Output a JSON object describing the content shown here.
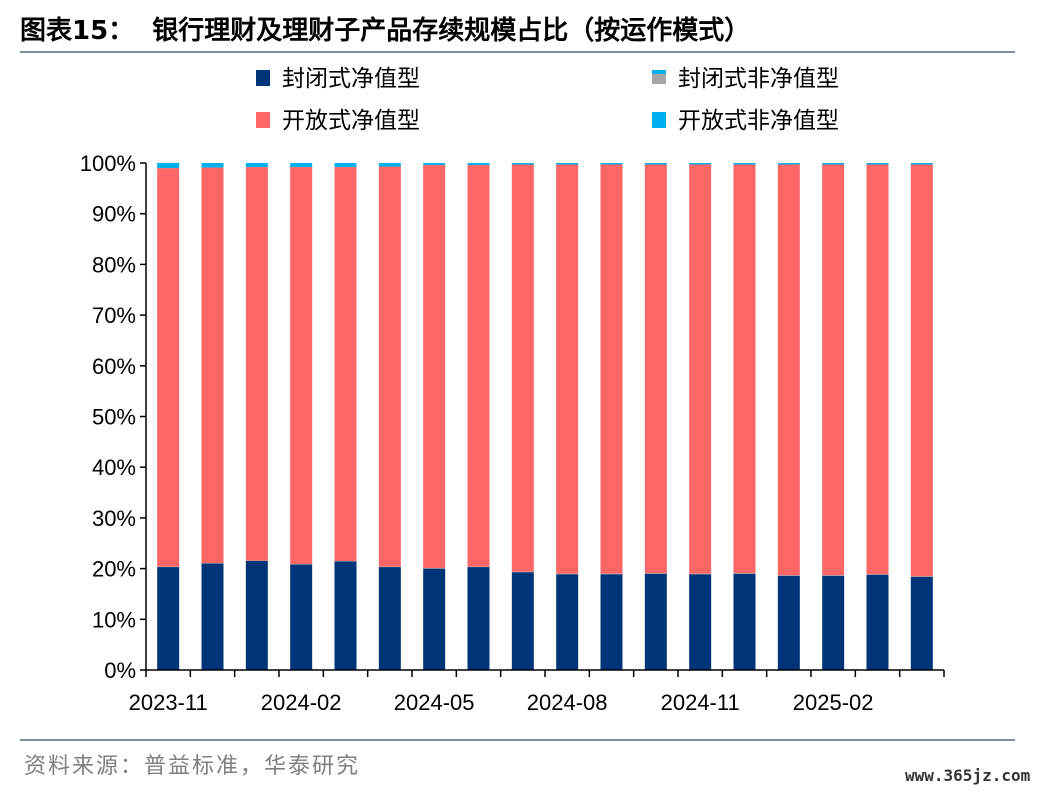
{
  "header": {
    "figure_label": "图表15：",
    "figure_title": "银行理财及理财子产品存续规模占比（按运作模式）"
  },
  "footer": {
    "source": "资料来源：普益标准，华泰研究",
    "watermark": "www.365jz.com"
  },
  "chart_data": {
    "type": "bar",
    "stacked": true,
    "categories": [
      "2023-11",
      "2023-12",
      "2024-01",
      "2024-02",
      "2024-03",
      "2024-04",
      "2024-05",
      "2024-06",
      "2024-07",
      "2024-08",
      "2024-09",
      "2024-10",
      "2024-11",
      "2024-12",
      "2025-01",
      "2025-02",
      "2025-03",
      "2025-04"
    ],
    "x_tick_labels": [
      "2023-11",
      "2024-02",
      "2024-05",
      "2024-08",
      "2024-11",
      "2025-02"
    ],
    "y_tick_labels": [
      "0%",
      "10%",
      "20%",
      "30%",
      "40%",
      "50%",
      "60%",
      "70%",
      "80%",
      "90%",
      "100%"
    ],
    "ylim": [
      0,
      100
    ],
    "legend_position": "top",
    "grid": false,
    "series": [
      {
        "name": "封闭式净值型",
        "color": "#003478",
        "values": [
          20.3,
          21.0,
          21.5,
          20.8,
          21.4,
          20.3,
          20.0,
          20.3,
          19.3,
          18.9,
          18.9,
          19.0,
          18.9,
          19.0,
          18.6,
          18.6,
          18.8,
          18.4
        ]
      },
      {
        "name": "封闭式非净值型",
        "color": "#a6a6a6",
        "values": [
          0.1,
          0.1,
          0.1,
          0.1,
          0.1,
          0.1,
          0.1,
          0.1,
          0.1,
          0.1,
          0.1,
          0.1,
          0.1,
          0.1,
          0.1,
          0.1,
          0.1,
          0.1
        ]
      },
      {
        "name": "开放式净值型",
        "color": "#ff6666",
        "values": [
          78.6,
          78.0,
          77.6,
          78.3,
          77.7,
          78.9,
          79.5,
          79.2,
          80.3,
          80.7,
          80.7,
          80.6,
          80.7,
          80.6,
          81.0,
          81.0,
          80.8,
          81.2
        ]
      },
      {
        "name": "开放式非净值型",
        "color": "#00b0f0",
        "values": [
          1.0,
          0.9,
          0.8,
          0.8,
          0.8,
          0.7,
          0.4,
          0.4,
          0.3,
          0.3,
          0.3,
          0.3,
          0.3,
          0.3,
          0.3,
          0.3,
          0.3,
          0.3
        ]
      }
    ]
  }
}
